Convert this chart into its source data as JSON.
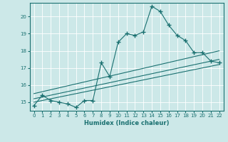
{
  "title": "",
  "xlabel": "Humidex (Indice chaleur)",
  "bg_color": "#cce8e8",
  "line_color": "#1a7070",
  "xlim": [
    -0.5,
    22.5
  ],
  "ylim": [
    14.5,
    20.8
  ],
  "yticks": [
    15,
    16,
    17,
    18,
    19,
    20
  ],
  "xticks": [
    0,
    1,
    2,
    3,
    4,
    5,
    6,
    7,
    8,
    9,
    10,
    11,
    12,
    13,
    14,
    15,
    16,
    17,
    18,
    19,
    20,
    21,
    22
  ],
  "series_x": [
    0,
    1,
    2,
    3,
    4,
    5,
    6,
    7,
    8,
    9,
    10,
    11,
    12,
    13,
    14,
    15,
    16,
    17,
    18,
    19,
    20,
    21,
    22
  ],
  "series_y": [
    14.8,
    15.4,
    15.1,
    15.0,
    14.9,
    14.7,
    15.1,
    15.1,
    17.3,
    16.5,
    18.5,
    19.0,
    18.9,
    19.1,
    20.6,
    20.3,
    19.5,
    18.9,
    18.6,
    17.9,
    17.9,
    17.4,
    17.3
  ],
  "lines": [
    [
      0,
      15.0,
      22,
      17.2
    ],
    [
      0,
      15.2,
      22,
      17.5
    ],
    [
      0,
      15.5,
      22,
      18.0
    ]
  ]
}
